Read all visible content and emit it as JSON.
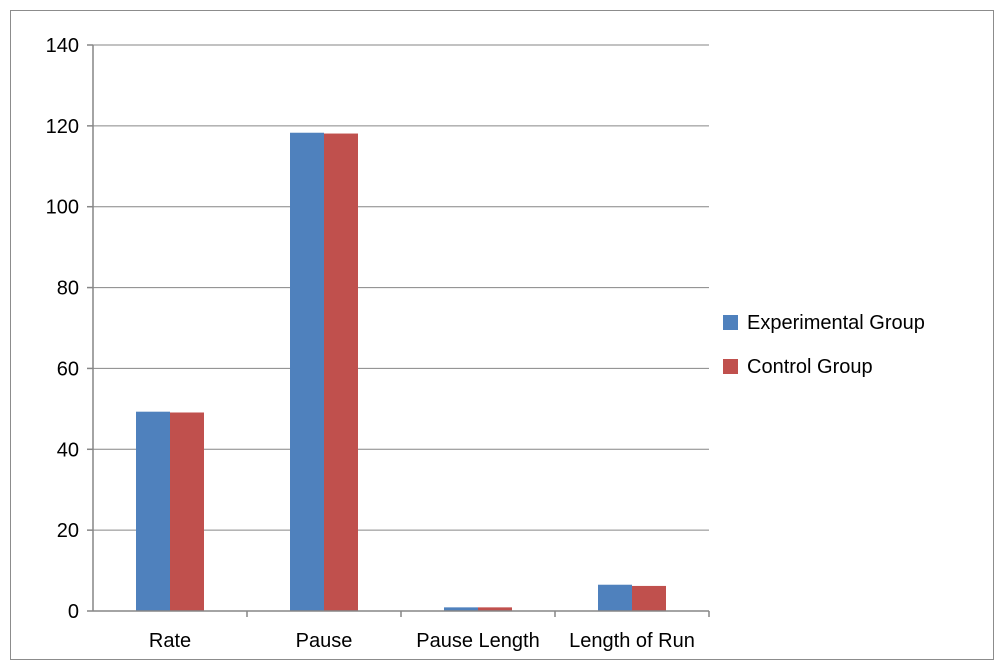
{
  "chart_data": {
    "type": "bar",
    "title": "",
    "xlabel": "",
    "ylabel": "",
    "categories": [
      "Rate",
      "Pause",
      "Pause Length",
      "Length of Run"
    ],
    "series": [
      {
        "name": "Experimental Group",
        "color": "#4f81bd",
        "values": [
          49.3,
          118.3,
          0.9,
          6.5
        ]
      },
      {
        "name": "Control Group",
        "color": "#c0504d",
        "values": [
          49.1,
          118.1,
          0.9,
          6.2
        ]
      }
    ],
    "ylim": [
      0,
      140
    ],
    "yticks": [
      0,
      20,
      40,
      60,
      80,
      100,
      120,
      140
    ],
    "grid": true,
    "legend_position": "right"
  }
}
